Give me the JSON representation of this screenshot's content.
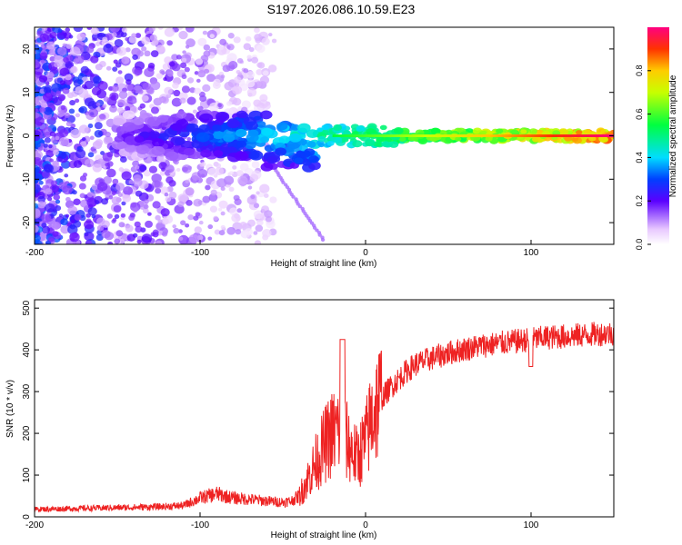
{
  "figure_title": "S197.2026.086.10.59.E23",
  "chart_data": [
    {
      "type": "heatmap",
      "title": "S197.2026.086.10.59.E23",
      "xlabel": "Height of straight line (km)",
      "ylabel": "Frequency (Hz)",
      "xlim": [
        -200,
        150
      ],
      "ylim": [
        -25,
        25
      ],
      "xticks": [
        -200,
        -100,
        0,
        100
      ],
      "yticks": [
        -20,
        -10,
        0,
        10,
        20
      ],
      "colorbar": {
        "label": "Normalized spectral amplitude",
        "range": [
          0,
          1
        ],
        "ticks": [
          "0.0",
          "0.2",
          "0.4",
          "0.6",
          "0.8"
        ]
      },
      "features": {
        "scattered_noise_region_km": [
          -200,
          -55
        ],
        "signal_band_start_km": -150,
        "signal_frequency_hz": 0,
        "signal_amplitude_at_150km": 1.0
      }
    },
    {
      "type": "line",
      "xlabel": "Height of straight line (km)",
      "ylabel": "SNR (10 * v/v)",
      "xlim": [
        -200,
        150
      ],
      "ylim": [
        0,
        520
      ],
      "xticks": [
        -200,
        -100,
        0,
        100
      ],
      "yticks": [
        0,
        100,
        200,
        300,
        400,
        500
      ],
      "series": [
        {
          "name": "SNR",
          "color": "#ee2222",
          "x": [
            -200,
            -175,
            -150,
            -125,
            -110,
            -100,
            -90,
            -80,
            -70,
            -60,
            -50,
            -45,
            -40,
            -35,
            -30,
            -25,
            -20,
            -15,
            -10,
            -5,
            0,
            5,
            10,
            15,
            20,
            25,
            30,
            40,
            50,
            60,
            70,
            80,
            90,
            100,
            110,
            120,
            130,
            140,
            150
          ],
          "y": [
            18,
            20,
            22,
            24,
            27,
            45,
            55,
            45,
            42,
            38,
            35,
            38,
            50,
            90,
            130,
            170,
            200,
            210,
            170,
            140,
            180,
            255,
            285,
            310,
            330,
            350,
            365,
            380,
            392,
            402,
            410,
            415,
            420,
            425,
            430,
            432,
            435,
            438,
            440
          ]
        }
      ]
    }
  ]
}
